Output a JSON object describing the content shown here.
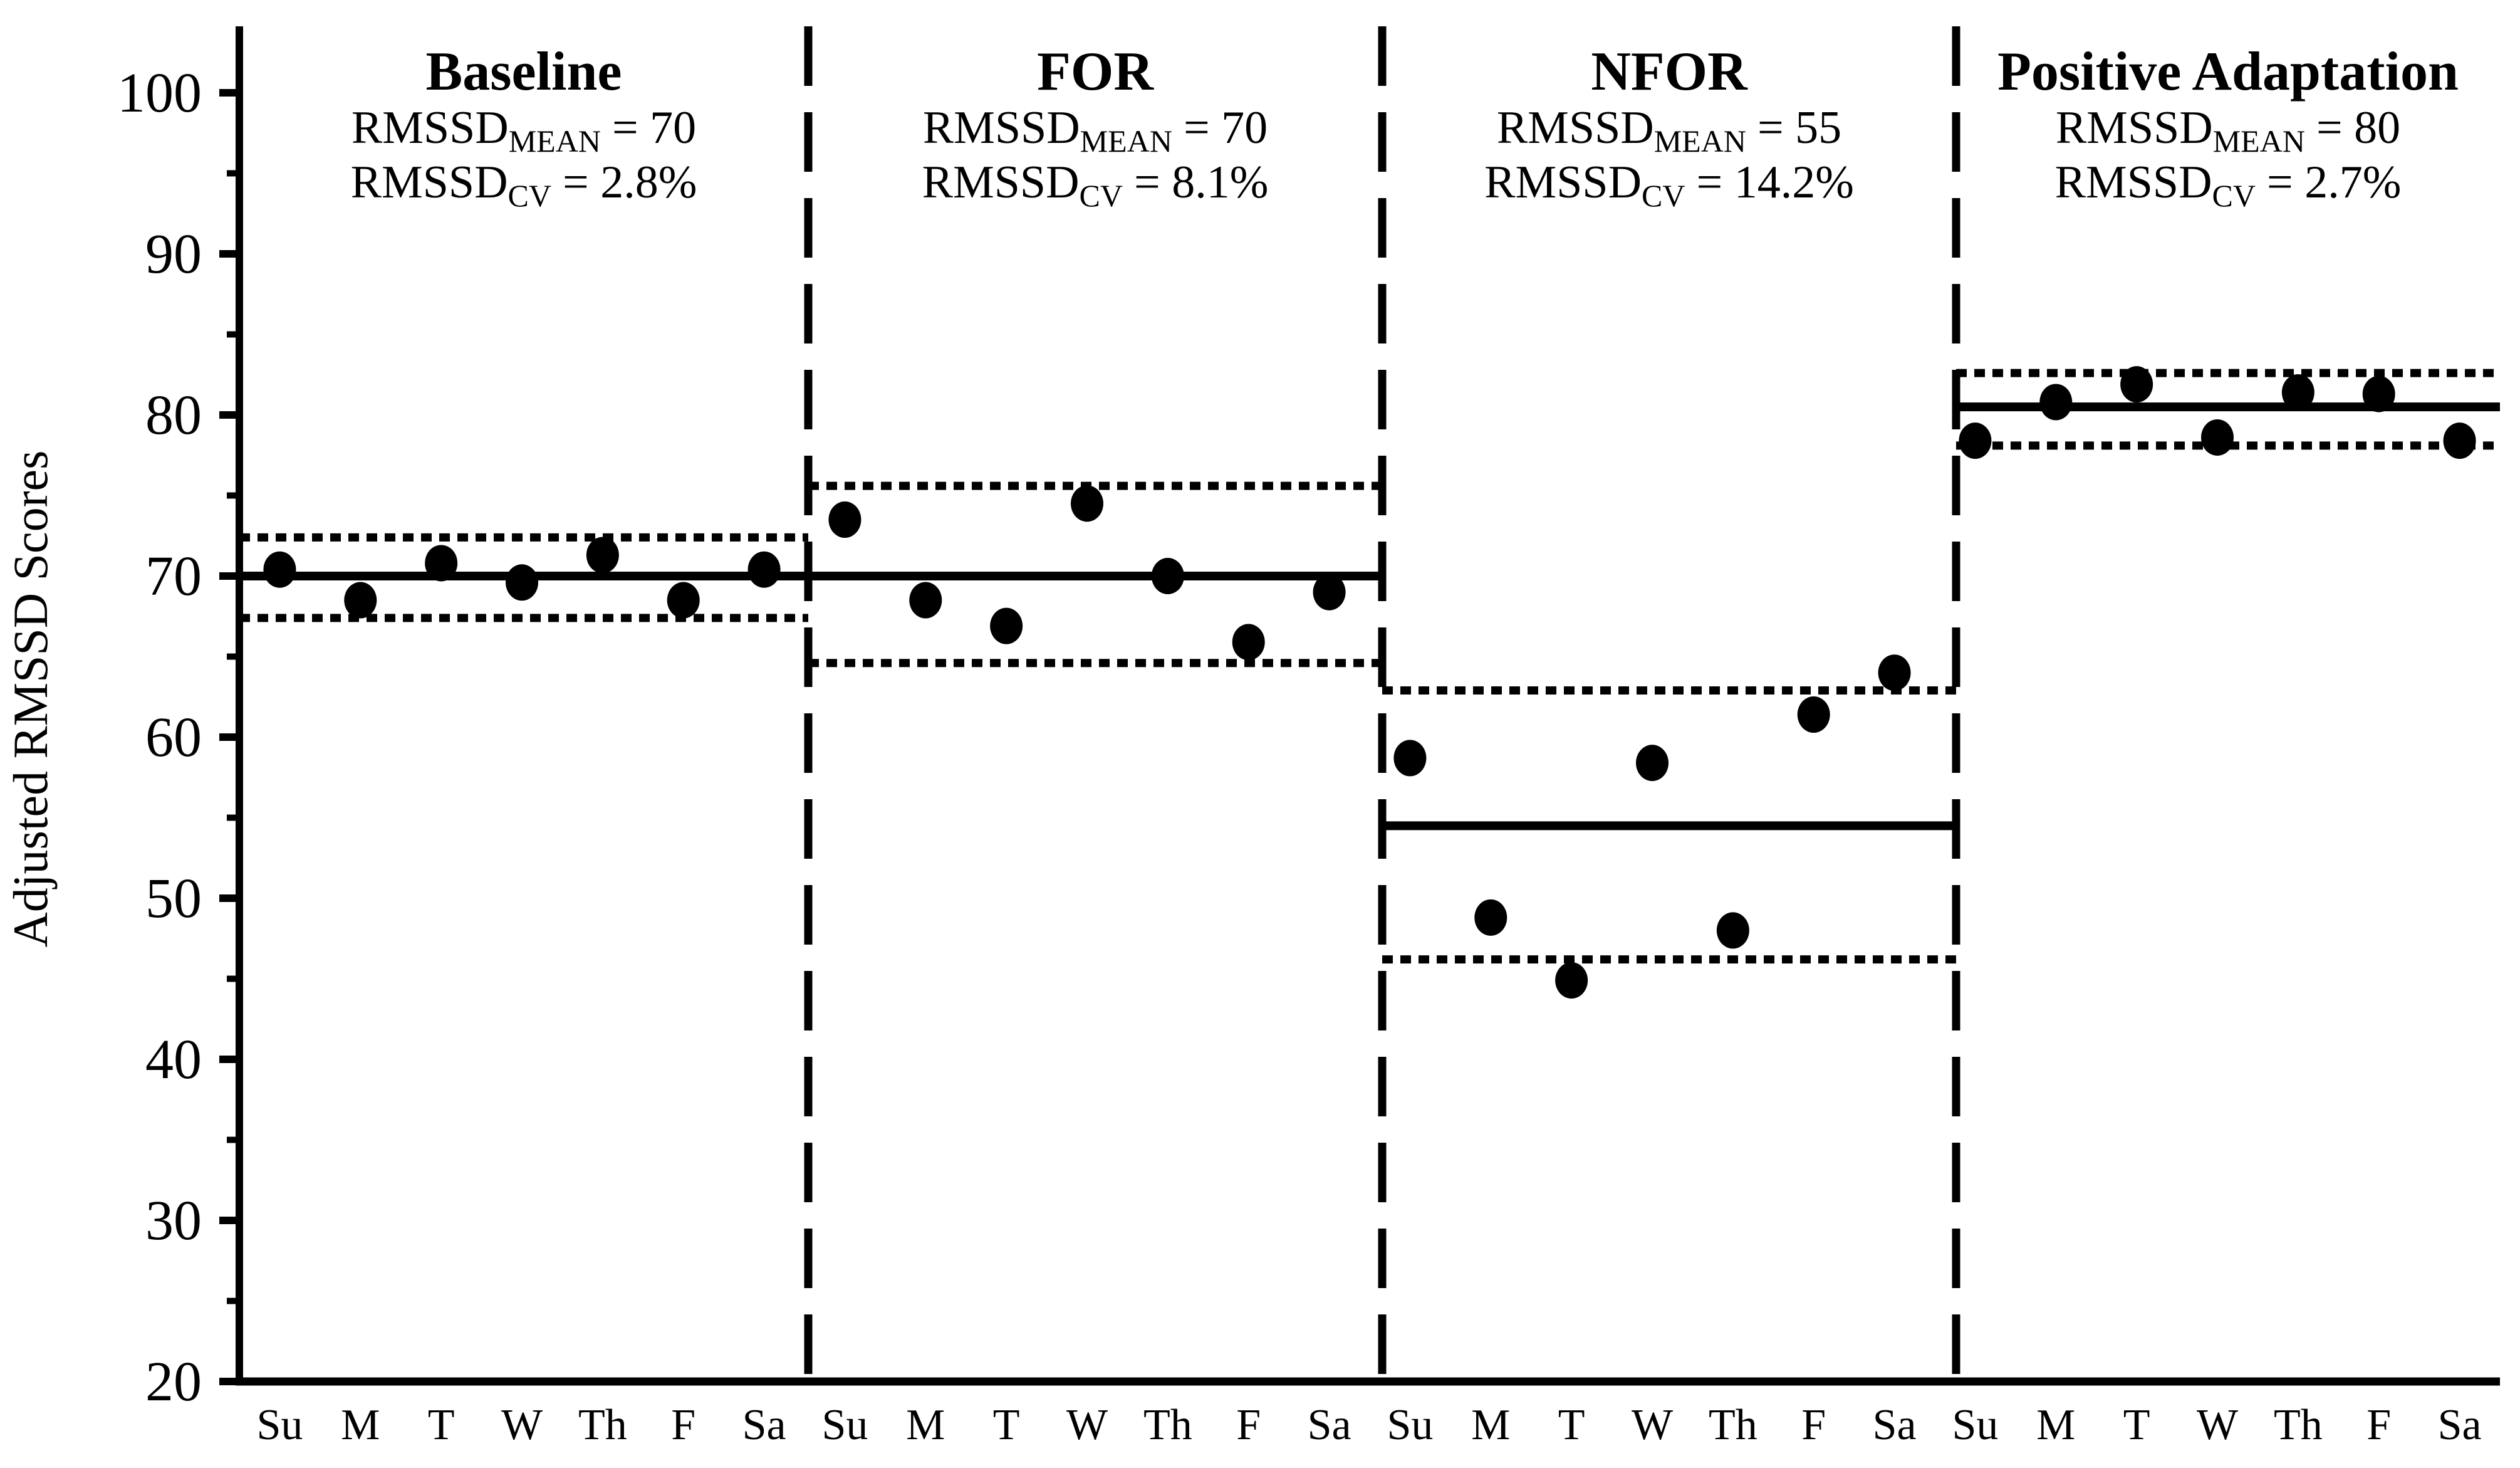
{
  "colors": {
    "ink": "#000000",
    "background": "#ffffff"
  },
  "y_axis": {
    "label": "Adjusted RMSSD Scores"
  },
  "chart_data": {
    "type": "scatter",
    "title": "",
    "xlabel": "",
    "ylabel": "Adjusted RMSSD Scores",
    "ylim": [
      20,
      104
    ],
    "grid": "off",
    "y_ticks": [
      100,
      90,
      80,
      70,
      60,
      50,
      40,
      30,
      20
    ],
    "y_minor_ticks": [
      95,
      85,
      75,
      65,
      55,
      45,
      35,
      25
    ],
    "categories": [
      "Su",
      "M",
      "T",
      "W",
      "Th",
      "F",
      "Sa"
    ],
    "panels": [
      {
        "title": "Baseline",
        "rmssd_mean": 70,
        "rmssd_cv_pct": 2.8,
        "stats": [
          {
            "base": "RMSSD",
            "sub": "MEAN",
            "rest": "= 70"
          },
          {
            "base": "RMSSD",
            "sub": "CV",
            "rest": "= 2.8%"
          }
        ],
        "mean_line": 70.0,
        "upper_band": 72.4,
        "lower_band": 67.4,
        "values": [
          70.4,
          68.5,
          70.8,
          69.6,
          71.3,
          68.5,
          70.4
        ]
      },
      {
        "title": "FOR",
        "rmssd_mean": 70,
        "rmssd_cv_pct": 8.1,
        "stats": [
          {
            "base": "RMSSD",
            "sub": "MEAN",
            "rest": "= 70"
          },
          {
            "base": "RMSSD",
            "sub": "CV",
            "rest": "= 8.1%"
          }
        ],
        "mean_line": 70.0,
        "upper_band": 75.6,
        "lower_band": 64.6,
        "values": [
          73.5,
          68.5,
          66.9,
          74.5,
          70.0,
          65.9,
          69.0
        ]
      },
      {
        "title": "NFOR",
        "rmssd_mean": 55,
        "rmssd_cv_pct": 14.2,
        "stats": [
          {
            "base": "RMSSD",
            "sub": "MEAN",
            "rest": "= 55"
          },
          {
            "base": "RMSSD",
            "sub": "CV",
            "rest": "= 14.2%"
          }
        ],
        "mean_line": 54.5,
        "upper_band": 62.9,
        "lower_band": 46.2,
        "values": [
          58.7,
          48.8,
          44.9,
          58.4,
          48.0,
          61.4,
          64.0
        ]
      },
      {
        "title": "Positive Adaptation",
        "rmssd_mean": 80,
        "rmssd_cv_pct": 2.7,
        "stats": [
          {
            "base": "RMSSD",
            "sub": "MEAN",
            "rest": "= 80"
          },
          {
            "base": "RMSSD",
            "sub": "CV",
            "rest": "= 2.7%"
          }
        ],
        "mean_line": 80.5,
        "upper_band": 82.6,
        "lower_band": 78.1,
        "values": [
          78.4,
          80.8,
          81.9,
          78.6,
          81.4,
          81.3,
          78.4
        ]
      }
    ]
  }
}
